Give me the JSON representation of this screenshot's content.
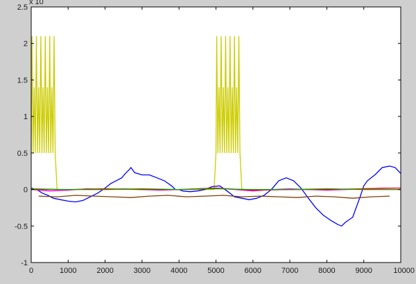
{
  "chart_data": {
    "type": "line",
    "title": "",
    "xlabel": "",
    "ylabel": "",
    "exponent_label": "x 10",
    "xlim": [
      0,
      10000
    ],
    "ylim": [
      -1,
      2.5
    ],
    "x_ticks": [
      0,
      1000,
      2000,
      3000,
      4000,
      5000,
      6000,
      7000,
      8000,
      9000,
      10000
    ],
    "y_ticks": [
      -1,
      -0.5,
      0,
      0.5,
      1,
      1.5,
      2,
      2.5
    ],
    "x_tick_labels": [
      "0",
      "1000",
      "2000",
      "3000",
      "4000",
      "5000",
      "6000",
      "7000",
      "8000",
      "9000",
      "10000"
    ],
    "y_tick_labels": [
      "-1",
      "-0.5",
      "0",
      "0.5",
      "1",
      "1.5",
      "2",
      "2.5"
    ],
    "grid": false,
    "background": "#ffffff",
    "figure_background": "#cfcfcf",
    "series": [
      {
        "color": "#cccc00",
        "x": [
          0,
          20,
          50,
          80,
          110,
          140,
          170,
          200,
          230,
          260,
          290,
          320,
          350,
          380,
          410,
          440,
          470,
          500,
          530,
          560,
          590,
          620,
          650,
          700,
          4950,
          5000,
          5020,
          5050,
          5080,
          5110,
          5140,
          5170,
          5200,
          5230,
          5260,
          5290,
          5320,
          5350,
          5380,
          5410,
          5440,
          5470,
          5500,
          5530,
          5560,
          5590,
          5620,
          5650,
          5700,
          10000
        ],
        "y": [
          0.5,
          2.1,
          0.5,
          1.4,
          0.5,
          2.1,
          0.5,
          1.4,
          0.5,
          2.1,
          0.5,
          1.4,
          0.5,
          2.1,
          0.5,
          1.4,
          0.5,
          2.1,
          0.5,
          1.4,
          0.5,
          2.1,
          0.5,
          0,
          0,
          0.5,
          2.1,
          0.5,
          1.4,
          0.5,
          2.1,
          0.5,
          1.4,
          0.5,
          2.1,
          0.5,
          1.4,
          0.5,
          2.1,
          0.5,
          1.4,
          0.5,
          2.1,
          0.5,
          1.4,
          0.5,
          2.1,
          0.5,
          0,
          0
        ]
      },
      {
        "color": "#0000ff",
        "x": [
          0,
          150,
          300,
          450,
          600,
          800,
          1000,
          1200,
          1400,
          1600,
          1800,
          2000,
          2150,
          2300,
          2450,
          2550,
          2650,
          2700,
          2800,
          3000,
          3200,
          3400,
          3600,
          3800,
          3900,
          4000,
          4100,
          4300,
          4500,
          4700,
          4900,
          5100,
          5300,
          5500,
          5700,
          5900,
          6100,
          6300,
          6500,
          6700,
          6900,
          7100,
          7300,
          7500,
          7700,
          7900,
          8100,
          8300,
          8400,
          8500,
          8700,
          8900,
          9000,
          9100,
          9300,
          9500,
          9700,
          9850,
          10000
        ],
        "y": [
          0.02,
          0.0,
          -0.05,
          -0.08,
          -0.12,
          -0.14,
          -0.16,
          -0.17,
          -0.15,
          -0.1,
          -0.05,
          0.02,
          0.08,
          0.12,
          0.16,
          0.22,
          0.27,
          0.3,
          0.23,
          0.2,
          0.2,
          0.16,
          0.12,
          0.05,
          0.0,
          0.0,
          -0.02,
          -0.03,
          -0.02,
          0.0,
          0.04,
          0.05,
          -0.02,
          -0.1,
          -0.12,
          -0.14,
          -0.12,
          -0.08,
          0.0,
          0.12,
          0.16,
          0.12,
          0.02,
          -0.12,
          -0.25,
          -0.35,
          -0.42,
          -0.48,
          -0.5,
          -0.45,
          -0.38,
          -0.1,
          0.05,
          0.12,
          0.2,
          0.3,
          0.32,
          0.3,
          0.22
        ]
      },
      {
        "color": "#ff00ff",
        "x": [
          0,
          500,
          1000,
          1500,
          2000,
          2500,
          3000,
          3500,
          4000,
          4500,
          5000,
          5500,
          6000,
          6500,
          7000,
          7500,
          8000,
          8500,
          9000,
          9500,
          10000
        ],
        "y": [
          0.0,
          -0.02,
          -0.01,
          0.01,
          0.0,
          0.01,
          0.0,
          -0.01,
          0.0,
          0.01,
          0.02,
          0.0,
          -0.02,
          0.0,
          0.01,
          0.0,
          -0.01,
          0.0,
          0.01,
          0.02,
          0.02
        ]
      },
      {
        "color": "#ff0000",
        "x": [
          0,
          1000,
          2000,
          3000,
          4000,
          5000,
          6000,
          7000,
          8000,
          9000,
          10000
        ],
        "y": [
          0.0,
          0.0,
          0.01,
          0.0,
          0.0,
          0.02,
          -0.01,
          0.0,
          0.0,
          0.01,
          0.02
        ]
      },
      {
        "color": "#7f3f00",
        "x": [
          200,
          700,
          1200,
          1700,
          2200,
          2700,
          3200,
          3700,
          4200,
          4700,
          5200,
          5700,
          6200,
          6700,
          7200,
          7700,
          8200,
          8700,
          9200,
          9700
        ],
        "y": [
          -0.09,
          -0.1,
          -0.08,
          -0.09,
          -0.1,
          -0.11,
          -0.09,
          -0.08,
          -0.1,
          -0.09,
          -0.08,
          -0.1,
          -0.09,
          -0.1,
          -0.11,
          -0.09,
          -0.1,
          -0.12,
          -0.1,
          -0.09
        ]
      },
      {
        "color": "#00aa00",
        "x": [
          0,
          1000,
          2000,
          3000,
          4000,
          5000,
          6000,
          7000,
          8000,
          9000,
          10000
        ],
        "y": [
          0.01,
          0.0,
          0.0,
          0.01,
          0.0,
          0.01,
          0.0,
          0.0,
          0.01,
          0.0,
          0.0
        ]
      }
    ]
  }
}
